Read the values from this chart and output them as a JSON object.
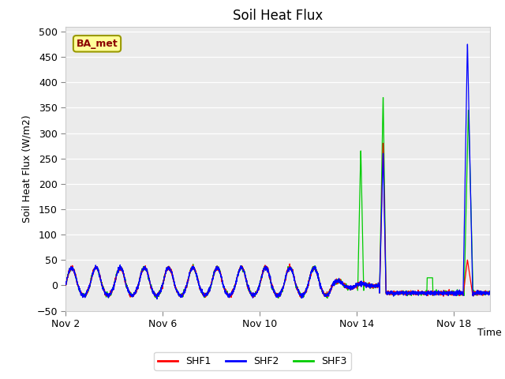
{
  "title": "Soil Heat Flux",
  "ylabel": "Soil Heat Flux (W/m2)",
  "xlabel": "Time",
  "ylim": [
    -50,
    510
  ],
  "xlim_start": 0,
  "xlim_end": 17.5,
  "xtick_positions": [
    0,
    4,
    8,
    12,
    16
  ],
  "xtick_labels": [
    "Nov 2",
    "Nov 6",
    "Nov 10",
    "Nov 14",
    "Nov 18"
  ],
  "ytick_positions": [
    -50,
    0,
    50,
    100,
    150,
    200,
    250,
    300,
    350,
    400,
    450,
    500
  ],
  "colors": {
    "SHF1": "#ff0000",
    "SHF2": "#0000ff",
    "SHF3": "#00cc00"
  },
  "fig_bg_color": "#ffffff",
  "plot_bg_color": "#ebebeb",
  "label_box_color": "#ffff99",
  "label_box_edge": "#999900",
  "label_text": "BA_met",
  "legend_entries": [
    "SHF1",
    "SHF2",
    "SHF3"
  ]
}
